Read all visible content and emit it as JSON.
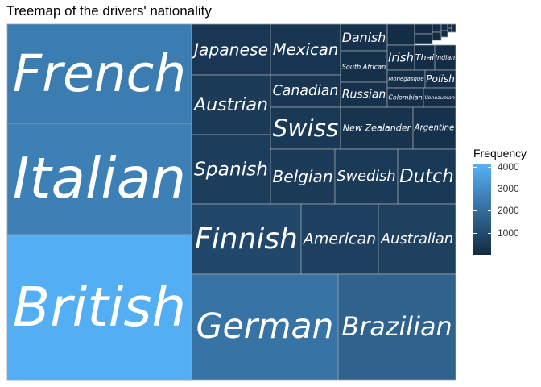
{
  "chart_data": {
    "type": "treemap",
    "title": "Treemap of the drivers' nationality",
    "legend": {
      "title": "Frequency",
      "ticks": [
        4000,
        3000,
        2000,
        1000
      ],
      "range": [
        0,
        4100
      ],
      "colors": [
        "#132B43",
        "#56B1F7"
      ],
      "placement": "right"
    },
    "items": [
      {
        "label": "British",
        "value": 4000
      },
      {
        "label": "Italian",
        "value": 2600
      },
      {
        "label": "French",
        "value": 2500
      },
      {
        "label": "German",
        "value": 2200
      },
      {
        "label": "Brazilian",
        "value": 1700
      },
      {
        "label": "Finnish",
        "value": 880
      },
      {
        "label": "American",
        "value": 650
      },
      {
        "label": "Australian",
        "value": 660
      },
      {
        "label": "Spanish",
        "value": 560
      },
      {
        "label": "Austrian",
        "value": 500
      },
      {
        "label": "Japanese",
        "value": 380
      },
      {
        "label": "Swiss",
        "value": 430
      },
      {
        "label": "Belgian",
        "value": 480
      },
      {
        "label": "Swedish",
        "value": 460
      },
      {
        "label": "Dutch",
        "value": 440
      },
      {
        "label": "Mexican",
        "value": 310
      },
      {
        "label": "Canadian",
        "value": 330
      },
      {
        "label": "Danish",
        "value": 190
      },
      {
        "label": "South African",
        "value": 150
      },
      {
        "label": "Russian",
        "value": 180
      },
      {
        "label": "New Zealander",
        "value": 250
      },
      {
        "label": "Argentine",
        "value": 180
      },
      {
        "label": "Irish",
        "value": 110
      },
      {
        "label": "Thai",
        "value": 75
      },
      {
        "label": "Indian",
        "value": 70
      },
      {
        "label": "Monegasque",
        "value": 110
      },
      {
        "label": "Polish",
        "value": 110
      },
      {
        "label": "Colombian",
        "value": 95
      },
      {
        "label": "Venezuelan",
        "value": 90
      },
      {
        "label": "",
        "value": 60
      },
      {
        "label": "",
        "value": 40
      },
      {
        "label": "",
        "value": 25
      },
      {
        "label": "",
        "value": 15
      },
      {
        "label": "",
        "value": 12
      },
      {
        "label": "",
        "value": 10
      },
      {
        "label": "",
        "value": 8
      },
      {
        "label": "",
        "value": 6
      },
      {
        "label": "",
        "value": 5
      },
      {
        "label": "",
        "value": 4
      },
      {
        "label": "",
        "value": 3
      }
    ]
  }
}
